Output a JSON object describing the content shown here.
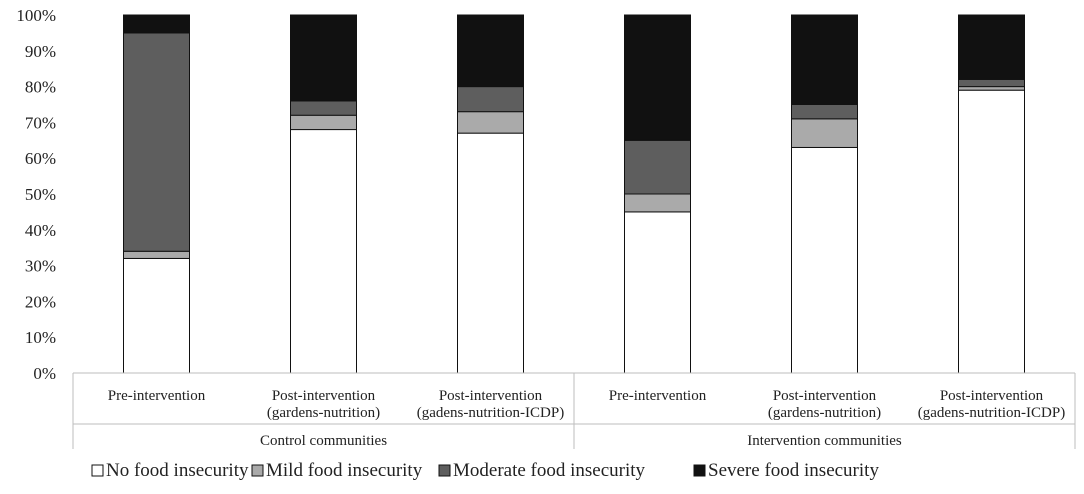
{
  "chart_data": {
    "type": "stacked-bar-100",
    "y_ticks": [
      "0%",
      "10%",
      "20%",
      "30%",
      "40%",
      "50%",
      "60%",
      "70%",
      "80%",
      "90%",
      "100%"
    ],
    "ylim": [
      0,
      100
    ],
    "groups": [
      {
        "name": "Control communities",
        "categories": [
          0,
          1,
          2
        ]
      },
      {
        "name": "Intervention communities",
        "categories": [
          3,
          4,
          5
        ]
      }
    ],
    "categories": [
      [
        "Pre-intervention"
      ],
      [
        "Post-intervention",
        "(gardens-nutrition)"
      ],
      [
        "Post-intervention",
        "(gadens-nutrition-ICDP)"
      ],
      [
        "Pre-intervention"
      ],
      [
        "Post-intervention",
        "(gardens-nutrition)"
      ],
      [
        "Post-intervention",
        "(gadens-nutrition-ICDP)"
      ]
    ],
    "series": [
      {
        "name": "No food insecurity",
        "color": "#ffffff",
        "values": [
          32,
          68,
          67,
          45,
          63,
          79
        ]
      },
      {
        "name": "Mild food insecurity",
        "color": "#aaaaaa",
        "values": [
          2,
          4,
          6,
          5,
          8,
          1
        ]
      },
      {
        "name": "Moderate food insecurity",
        "color": "#5e5e5e",
        "values": [
          61,
          4,
          7,
          15,
          4,
          2
        ]
      },
      {
        "name": "Severe food insecurity",
        "color": "#111111",
        "values": [
          5,
          24,
          20,
          35,
          25,
          18
        ]
      }
    ],
    "legend_position": "bottom"
  }
}
